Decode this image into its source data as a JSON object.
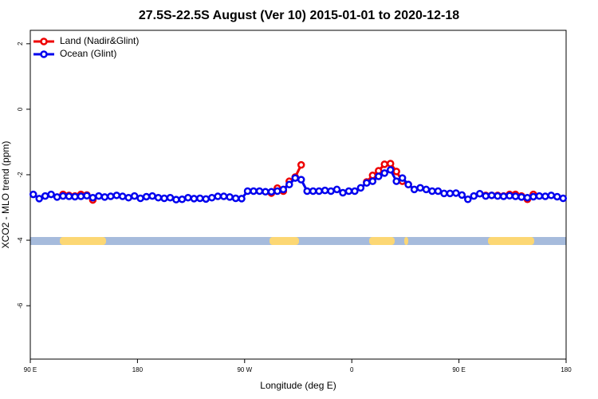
{
  "chart_data": {
    "type": "line",
    "title": "27.5S-22.5S August (Ver 10)   2015-01-01 to 2020-12-18",
    "x_label": "Longitude (deg E)",
    "y_label": "XCO2 - MLO trend (ppm)",
    "xlim": [
      90,
      540
    ],
    "ylim": [
      -7.63,
      2.41
    ],
    "xticks": [
      {
        "value": 90,
        "label": "90 E"
      },
      180,
      {
        "value": 270,
        "label": "90 W"
      },
      {
        "value": 360,
        "label": "0"
      },
      {
        "value": 450,
        "label": "90 E"
      },
      {
        "value": 540,
        "label": "180"
      }
    ],
    "yticks": [
      2,
      0,
      -2,
      -4,
      -6
    ],
    "legend": "top-left",
    "x": [
      92.5,
      97.5,
      102.5,
      107.5,
      112.5,
      117.5,
      122.5,
      127.5,
      132.5,
      137.5,
      142.5,
      147.5,
      152.5,
      157.5,
      162.5,
      167.5,
      172.5,
      177.5,
      182.5,
      187.5,
      192.5,
      197.5,
      202.5,
      207.5,
      212.5,
      217.5,
      222.5,
      227.5,
      232.5,
      237.5,
      242.5,
      247.5,
      252.5,
      257.5,
      262.5,
      267.5,
      272.5,
      277.5,
      282.5,
      287.5,
      292.5,
      297.5,
      302.5,
      307.5,
      312.5,
      317.5,
      322.5,
      327.5,
      332.5,
      337.5,
      342.5,
      347.5,
      352.5,
      357.5,
      362.5,
      367.5,
      372.5,
      377.5,
      382.5,
      387.5,
      392.5,
      397.5,
      402.5,
      407.5,
      412.5,
      417.5,
      422.5,
      427.5,
      432.5,
      437.5,
      442.5,
      447.5,
      452.5,
      457.5,
      462.5,
      467.5,
      472.5,
      477.5,
      482.5,
      487.5,
      492.5,
      497.5,
      502.5,
      507.5,
      512.5,
      517.5,
      522.5,
      527.5,
      532.5,
      537.5
    ],
    "series": [
      {
        "name": "Land (Nadir&Glint)",
        "color": "#ee0000",
        "values": [
          null,
          null,
          null,
          null,
          null,
          -2.6,
          -2.63,
          -2.65,
          -2.6,
          -2.62,
          -2.77,
          null,
          null,
          null,
          null,
          null,
          null,
          null,
          null,
          null,
          null,
          null,
          null,
          null,
          null,
          null,
          null,
          null,
          null,
          null,
          null,
          null,
          null,
          null,
          null,
          null,
          null,
          null,
          null,
          null,
          -2.56,
          -2.41,
          -2.5,
          -2.2,
          -2.07,
          -1.7,
          null,
          null,
          null,
          null,
          null,
          null,
          null,
          null,
          null,
          null,
          -2.22,
          -2.02,
          -1.88,
          -1.68,
          -1.66,
          -1.9,
          -2.2,
          -2.3,
          null,
          null,
          null,
          null,
          null,
          null,
          null,
          null,
          null,
          null,
          null,
          null,
          -2.63,
          -2.63,
          -2.63,
          -2.65,
          -2.6,
          -2.6,
          -2.65,
          -2.75,
          -2.6,
          null,
          null,
          null,
          null,
          null
        ]
      },
      {
        "name": "Ocean (Glint)",
        "color": "#0000ee",
        "values": [
          -2.6,
          -2.73,
          -2.65,
          -2.6,
          -2.68,
          -2.65,
          -2.66,
          -2.67,
          -2.66,
          -2.64,
          -2.7,
          -2.65,
          -2.68,
          -2.66,
          -2.63,
          -2.66,
          -2.7,
          -2.65,
          -2.72,
          -2.67,
          -2.65,
          -2.7,
          -2.72,
          -2.7,
          -2.76,
          -2.75,
          -2.7,
          -2.73,
          -2.72,
          -2.74,
          -2.7,
          -2.66,
          -2.66,
          -2.68,
          -2.72,
          -2.73,
          -2.5,
          -2.5,
          -2.5,
          -2.52,
          -2.52,
          -2.5,
          -2.45,
          -2.3,
          -2.1,
          -2.15,
          -2.5,
          -2.5,
          -2.5,
          -2.48,
          -2.5,
          -2.45,
          -2.55,
          -2.5,
          -2.5,
          -2.4,
          -2.25,
          -2.2,
          -2.05,
          -1.95,
          -1.85,
          -2.2,
          -2.1,
          -2.3,
          -2.45,
          -2.4,
          -2.45,
          -2.5,
          -2.5,
          -2.57,
          -2.57,
          -2.56,
          -2.62,
          -2.75,
          -2.65,
          -2.58,
          -2.65,
          -2.63,
          -2.65,
          -2.66,
          -2.64,
          -2.66,
          -2.68,
          -2.7,
          -2.67,
          -2.65,
          -2.66,
          -2.63,
          -2.67,
          -2.72
        ]
      }
    ]
  }
}
